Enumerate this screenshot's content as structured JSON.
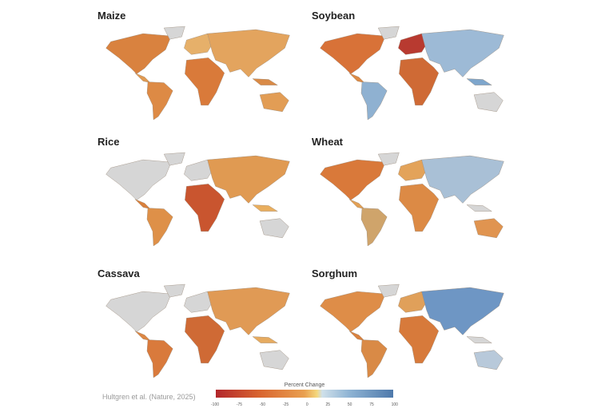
{
  "panels": [
    {
      "title": "Maize",
      "colors": {
        "na": "#d9823f",
        "gl": "#d6d6d6",
        "ca": "#e09a52",
        "sa": "#dd8a45",
        "eu": "#e6b06a",
        "af": "#d97a3a",
        "as": "#e3a45e",
        "sea": "#d98a46",
        "au": "#e29d55"
      }
    },
    {
      "title": "Soybean",
      "colors": {
        "na": "#d87238",
        "gl": "#d6d6d6",
        "ca": "#dd8a45",
        "sa": "#8fb1d1",
        "eu": "#b83a30",
        "af": "#cf6a35",
        "as": "#9dbad6",
        "sea": "#7ea6cc",
        "au": "#d6d6d6"
      }
    },
    {
      "title": "Rice",
      "colors": {
        "na": "#d6d6d6",
        "gl": "#d6d6d6",
        "ca": "#d9803c",
        "sa": "#de9048",
        "eu": "#d6d6d6",
        "af": "#c9552f",
        "as": "#e09a52",
        "sea": "#e9ae5e",
        "au": "#d6d6d6"
      }
    },
    {
      "title": "Wheat",
      "colors": {
        "na": "#d9793a",
        "gl": "#d6d6d6",
        "ca": "#e2a055",
        "sa": "#cfa46b",
        "eu": "#e3a35a",
        "af": "#dc8a45",
        "as": "#a9c0d6",
        "sea": "#d6d6d6",
        "au": "#e09450"
      }
    },
    {
      "title": "Cassava",
      "colors": {
        "na": "#d6d6d6",
        "gl": "#d6d6d6",
        "ca": "#dc8744",
        "sa": "#d97a3c",
        "eu": "#d6d6d6",
        "af": "#cf6a35",
        "as": "#e09a55",
        "sea": "#e6ab60",
        "au": "#d6d6d6"
      }
    },
    {
      "title": "Sorghum",
      "colors": {
        "na": "#de8d48",
        "gl": "#d6d6d6",
        "ca": "#d9823f",
        "sa": "#d98a46",
        "eu": "#e0a05a",
        "af": "#d77a3b",
        "as": "#6e96c4",
        "sea": "#d6d6d6",
        "au": "#b8c9da"
      }
    }
  ],
  "credit": "Hultgren et al. (Nature, 2025)",
  "legend": {
    "title": "Percent Change",
    "ticks": [
      "-100",
      "-75",
      "-50",
      "-25",
      "0",
      "25",
      "50",
      "75",
      "100"
    ]
  }
}
